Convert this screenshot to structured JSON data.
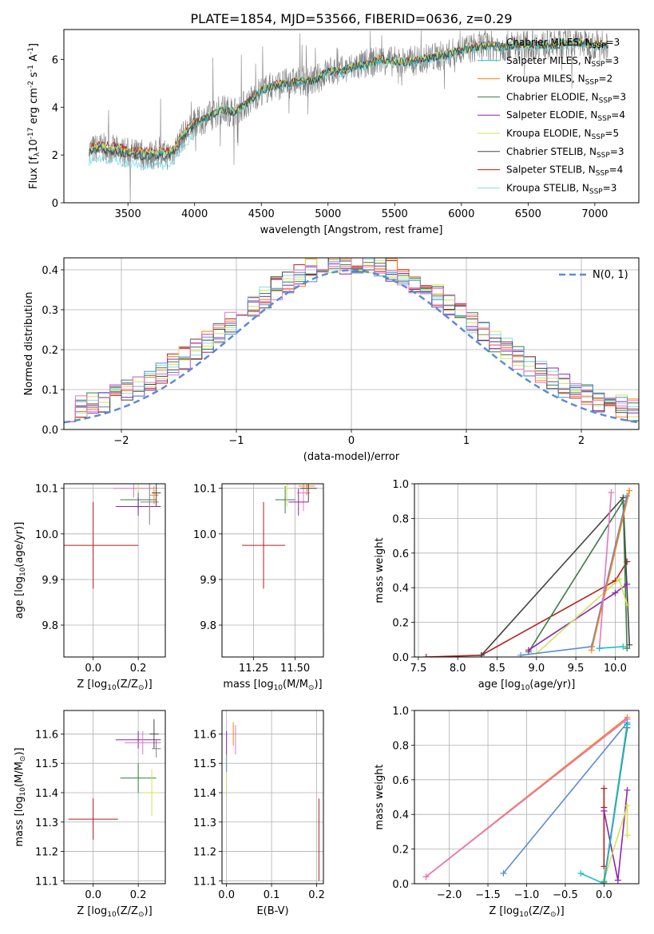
{
  "page_title": "PLATE=1854, MJD=53566, FIBERID=0636, z=0.29",
  "colors": {
    "chabrier_miles": "#7f7f7f",
    "salpeter_miles": "#17becf",
    "kroupa_miles": "#ff7f0e",
    "chabrier_elodie": "#3a7d44",
    "salpeter_elodie": "#8e24aa",
    "kroupa_elodie": "#d4e157",
    "chabrier_stelib": "#444444",
    "salpeter_stelib": "#b71c1c",
    "kroupa_stelib": "#80deea",
    "gaussian": "#5b8bd6",
    "spectrum": "#808080",
    "pink": "#e377c2",
    "blue": "#5b8bd6"
  },
  "chart_data": [
    {
      "id": "spectrum",
      "type": "line",
      "xlabel": "wavelength [Angstrom, rest frame]",
      "ylabel": "Flux [f$_\\lambda$10$^{-17}$ erg cm$^{-2}$ s$^{-1}$ A$^{-1}$]",
      "xlim": [
        3020,
        7330
      ],
      "ylim": [
        0,
        7.25
      ],
      "xticks": [
        "3500",
        "4000",
        "4500",
        "5000",
        "5500",
        "6000",
        "6500",
        "7000"
      ],
      "yticks": [
        "0",
        "2",
        "4",
        "6"
      ],
      "legend_position": "top-right",
      "legend": [
        "Chabrier MILES, N$_{SSP}$=3",
        "Salpeter MILES, N$_{SSP}$=3",
        "Kroupa MILES, N$_{SSP}$=2",
        "Chabrier ELODIE, N$_{SSP}$=3",
        "Salpeter ELODIE, N$_{SSP}$=4",
        "Kroupa ELODIE, N$_{SSP}$=5",
        "Chabrier STELIB, N$_{SSP}$=3",
        "Salpeter STELIB, N$_{SSP}$=4",
        "Kroupa STELIB, N$_{SSP}$=3"
      ],
      "model_continuum": {
        "x": [
          3210,
          3300,
          3400,
          3500,
          3600,
          3700,
          3800,
          3850,
          3900,
          4000,
          4100,
          4200,
          4300,
          4400,
          4500,
          4600,
          4700,
          4800,
          4900,
          5000,
          5100,
          5200,
          5300,
          5400,
          5500,
          5600,
          5700,
          5800,
          5900,
          6000,
          6100,
          6200,
          6300,
          6400,
          6500,
          6600,
          6700,
          6800,
          6900,
          7000,
          7100
        ],
        "y": [
          2.2,
          2.3,
          2.2,
          2.1,
          2.0,
          2.0,
          2.0,
          2.2,
          2.7,
          3.3,
          3.6,
          3.9,
          3.8,
          4.2,
          4.7,
          4.9,
          5.0,
          5.1,
          5.1,
          5.5,
          5.5,
          5.7,
          5.8,
          6.0,
          5.9,
          5.9,
          6.0,
          6.1,
          6.2,
          6.4,
          6.5,
          6.6,
          6.5,
          6.6,
          6.6,
          6.6,
          6.6,
          6.7,
          6.7,
          6.6,
          6.6
        ]
      },
      "observed_flux_range": [
        0,
        7.2
      ]
    },
    {
      "id": "residuals",
      "type": "line",
      "xlabel": "(data-model)/error",
      "ylabel": "Normed distribution",
      "xlim": [
        -2.5,
        2.5
      ],
      "ylim": [
        0,
        0.43
      ],
      "xticks": [
        "−2",
        "−1",
        "0",
        "1",
        "2"
      ],
      "yticks": [
        "0.0",
        "0.1",
        "0.2",
        "0.3",
        "0.4"
      ],
      "legend_position": "top-right",
      "legend": [
        "$\\mathcal{N}$(0, 1)"
      ],
      "gaussian": {
        "mean": 0,
        "sigma": 1
      }
    },
    {
      "id": "age_vs_Z",
      "type": "scatter",
      "xlabel": "Z [log$_{10}$(Z/Z$_\\odot$)]",
      "ylabel": "age  [log$_{10}$(age/yr)]",
      "xlim": [
        -0.13,
        0.32
      ],
      "ylim": [
        9.73,
        10.11
      ],
      "xticks": [
        "0.0",
        "0.2"
      ],
      "yticks": [
        "9.8",
        "9.9",
        "10.0",
        "10.1"
      ],
      "points": [
        {
          "x": 0.0,
          "xerr": 0.2,
          "y": 9.975,
          "yerr": 0.095,
          "c": "salpeter_stelib"
        },
        {
          "x": 0.2,
          "xerr": 0.08,
          "y": 10.075,
          "yerr": 0.02,
          "c": "chabrier_elodie"
        },
        {
          "x": 0.18,
          "xerr": 0.09,
          "y": 10.1,
          "yerr": 0.02,
          "c": "pink"
        },
        {
          "x": 0.2,
          "xerr": 0.1,
          "y": 10.06,
          "yerr": 0.02,
          "c": "salpeter_elodie"
        },
        {
          "x": 0.25,
          "xerr": 0.04,
          "y": 10.07,
          "yerr": 0.05,
          "c": "chabrier_miles"
        },
        {
          "x": 0.2,
          "xerr": 0.09,
          "y": 10.12,
          "yerr": 0.03,
          "c": "kroupa_elodie"
        },
        {
          "x": 0.27,
          "xerr": 0.02,
          "y": 10.085,
          "yerr": 0.02,
          "c": "kroupa_miles"
        },
        {
          "x": 0.28,
          "xerr": 0.02,
          "y": 10.09,
          "yerr": 0.03,
          "c": "chabrier_stelib"
        }
      ]
    },
    {
      "id": "age_vs_mass",
      "type": "scatter",
      "xlabel": "mass [log$_{10}$(M/M$_\\odot$)]",
      "ylabel": "",
      "xlim": [
        11.06,
        11.67
      ],
      "ylim": [
        9.73,
        10.11
      ],
      "xticks": [
        "11.25",
        "11.50"
      ],
      "yticks": [
        "9.8",
        "9.9",
        "10.0",
        "10.1"
      ],
      "points": [
        {
          "x": 11.31,
          "xerr": 0.13,
          "y": 9.975,
          "yerr": 0.095,
          "c": "salpeter_stelib"
        },
        {
          "x": 11.44,
          "xerr": 0.06,
          "y": 10.075,
          "yerr": 0.03,
          "c": "chabrier_elodie"
        },
        {
          "x": 11.55,
          "xerr": 0.04,
          "y": 10.09,
          "yerr": 0.04,
          "c": "pink"
        },
        {
          "x": 11.52,
          "xerr": 0.06,
          "y": 10.07,
          "yerr": 0.03,
          "c": "salpeter_elodie"
        },
        {
          "x": 11.45,
          "xerr": 0.02,
          "y": 10.1,
          "yerr": 0.04,
          "c": "kroupa_elodie"
        },
        {
          "x": 11.57,
          "xerr": 0.05,
          "y": 10.105,
          "yerr": 0.02,
          "c": "kroupa_miles"
        },
        {
          "x": 11.58,
          "xerr": 0.05,
          "y": 10.1,
          "yerr": 0.03,
          "c": "chabrier_stelib"
        }
      ]
    },
    {
      "id": "mass_weight_vs_age",
      "type": "line",
      "xlabel": "age  [log$_{10}$(age/yr)]",
      "ylabel": "mass weight",
      "xlim": [
        7.45,
        10.3
      ],
      "ylim": [
        0,
        1.0
      ],
      "xticks": [
        "7.5",
        "8.0",
        "8.5",
        "9.0",
        "9.5",
        "10.0"
      ],
      "yticks": [
        "0.0",
        "0.2",
        "0.4",
        "0.6",
        "0.8",
        "1.0"
      ],
      "series": [
        {
          "c": "salpeter_stelib",
          "x": [
            7.6,
            8.3,
            10.0,
            10.15
          ],
          "y": [
            0.0,
            0.01,
            0.44,
            0.55
          ]
        },
        {
          "c": "chabrier_stelib",
          "x": [
            8.3,
            10.1,
            10.18
          ],
          "y": [
            0.01,
            0.92,
            0.07
          ]
        },
        {
          "c": "chabrier_elodie",
          "x": [
            8.9,
            10.1,
            10.15
          ],
          "y": [
            0.03,
            0.9,
            0.05
          ]
        },
        {
          "c": "salpeter_elodie",
          "x": [
            8.9,
            10.0,
            10.15
          ],
          "y": [
            0.04,
            0.37,
            0.42
          ]
        },
        {
          "c": "kroupa_elodie",
          "x": [
            9.0,
            10.05,
            10.15
          ],
          "y": [
            0.02,
            0.45,
            0.3
          ]
        },
        {
          "c": "blue",
          "x": [
            8.8,
            9.7,
            10.15
          ],
          "y": [
            0.01,
            0.06,
            0.93
          ]
        },
        {
          "c": "kroupa_miles",
          "x": [
            9.7,
            10.18
          ],
          "y": [
            0.04,
            0.96
          ]
        },
        {
          "c": "pink",
          "x": [
            9.8,
            9.95
          ],
          "y": [
            0.05,
            0.95
          ]
        },
        {
          "c": "salpeter_miles",
          "x": [
            9.8,
            10.1
          ],
          "y": [
            0.05,
            0.06
          ]
        }
      ]
    },
    {
      "id": "mass_vs_Z",
      "type": "scatter",
      "xlabel": "Z [log$_{10}$(Z/Z$_\\odot$)]",
      "ylabel": "mass [log$_{10}$(M/M$_\\odot$)]",
      "xlim": [
        -0.13,
        0.32
      ],
      "ylim": [
        11.09,
        11.68
      ],
      "xticks": [
        "0.0",
        "0.2"
      ],
      "yticks": [
        "11.1",
        "11.2",
        "11.3",
        "11.4",
        "11.5",
        "11.6"
      ],
      "points": [
        {
          "x": 0.0,
          "xerr": 0.11,
          "y": 11.31,
          "yerr": 0.07,
          "c": "salpeter_stelib"
        },
        {
          "x": 0.2,
          "xerr": 0.08,
          "y": 11.45,
          "yerr": 0.05,
          "c": "chabrier_elodie"
        },
        {
          "x": 0.26,
          "xerr": 0.04,
          "y": 11.4,
          "yerr": 0.08,
          "c": "kroupa_elodie"
        },
        {
          "x": 0.2,
          "xerr": 0.1,
          "y": 11.58,
          "yerr": 0.03,
          "c": "salpeter_elodie"
        },
        {
          "x": 0.22,
          "xerr": 0.08,
          "y": 11.57,
          "yerr": 0.04,
          "c": "pink"
        },
        {
          "x": 0.27,
          "xerr": 0.02,
          "y": 11.6,
          "yerr": 0.05,
          "c": "chabrier_stelib"
        },
        {
          "x": 0.28,
          "xerr": 0.02,
          "y": 11.55,
          "yerr": 0.03,
          "c": "chabrier_miles"
        }
      ]
    },
    {
      "id": "mass_vs_EBV",
      "type": "scatter",
      "xlabel": "E(B-V)",
      "ylabel": "",
      "xlim": [
        -0.01,
        0.215
      ],
      "ylim": [
        11.09,
        11.68
      ],
      "xticks": [
        "0.0",
        "0.1",
        "0.2"
      ],
      "yticks": [
        "11.1",
        "11.2",
        "11.3",
        "11.4",
        "11.5",
        "11.6"
      ],
      "points": [
        {
          "x": 0.205,
          "xerr": 0,
          "y": 11.24,
          "yerr": 0.14,
          "c": "salpeter_stelib"
        },
        {
          "x": 0.0,
          "xerr": 0,
          "y": 11.45,
          "yerr": 0.05,
          "c": "kroupa_elodie"
        },
        {
          "x": 0.02,
          "xerr": 0,
          "y": 11.58,
          "yerr": 0.05,
          "c": "pink"
        },
        {
          "x": 0.0,
          "xerr": 0,
          "y": 11.57,
          "yerr": 0.04,
          "c": "salpeter_elodie"
        },
        {
          "x": 0.015,
          "xerr": 0,
          "y": 11.6,
          "yerr": 0.04,
          "c": "kroupa_miles"
        },
        {
          "x": 0.0,
          "xerr": 0,
          "y": 11.5,
          "yerr": 0.03,
          "c": "blue"
        }
      ]
    },
    {
      "id": "mass_weight_vs_Z",
      "type": "line",
      "xlabel": "Z [log$_{10}$(Z/Z$_\\odot$)]",
      "ylabel": "mass weight",
      "xlim": [
        -2.45,
        0.45
      ],
      "ylim": [
        0,
        1.0
      ],
      "xticks": [
        "−2.0",
        "−1.5",
        "−1.0",
        "−0.5",
        "0.0"
      ],
      "yticks": [
        "0.0",
        "0.2",
        "0.4",
        "0.6",
        "0.8",
        "1.0"
      ],
      "series": [
        {
          "c": "kroupa_miles",
          "x": [
            -2.3,
            0.3
          ],
          "y": [
            0.04,
            0.96
          ]
        },
        {
          "c": "pink",
          "x": [
            -2.3,
            0.3
          ],
          "y": [
            0.04,
            0.95
          ]
        },
        {
          "c": "blue",
          "x": [
            -1.3,
            0.3
          ],
          "y": [
            0.06,
            0.93
          ]
        },
        {
          "c": "salpeter_stelib",
          "x": [
            0.0,
            0.0,
            0.0
          ],
          "y": [
            0.1,
            0.55,
            0.44
          ]
        },
        {
          "c": "salpeter_elodie",
          "x": [
            0.0,
            0.18,
            0.3
          ],
          "y": [
            0.42,
            0.02,
            0.54
          ]
        },
        {
          "c": "kroupa_elodie",
          "x": [
            0.0,
            0.3,
            0.3
          ],
          "y": [
            0.02,
            0.45,
            0.28
          ]
        },
        {
          "c": "chabrier_elodie",
          "x": [
            0.0,
            0.3
          ],
          "y": [
            0.0,
            0.9
          ]
        },
        {
          "c": "chabrier_stelib",
          "x": [
            0.0,
            0.3
          ],
          "y": [
            0.01,
            0.92
          ]
        },
        {
          "c": "salpeter_miles",
          "x": [
            -0.3,
            0.0,
            0.3
          ],
          "y": [
            0.06,
            0.0,
            0.92
          ]
        }
      ]
    }
  ]
}
